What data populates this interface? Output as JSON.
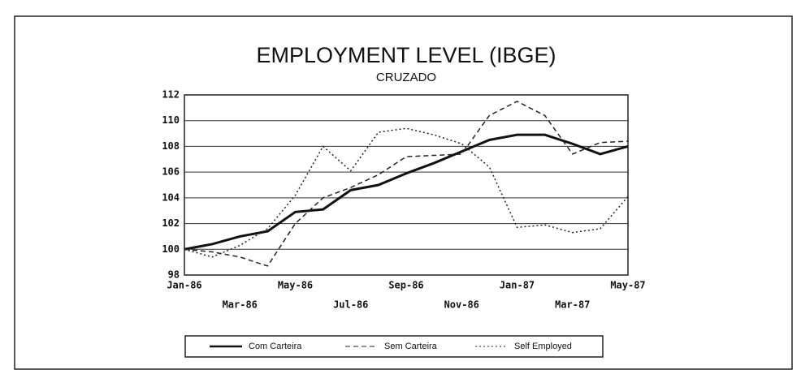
{
  "chart_data": {
    "type": "line",
    "title": "EMPLOYMENT LEVEL (IBGE)",
    "subtitle": "CRUZADO",
    "categories": [
      "Jan-86",
      null,
      "Mar-86",
      null,
      "May-86",
      null,
      "Jul-86",
      null,
      "Sep-86",
      null,
      "Nov-86",
      null,
      "Jan-87",
      null,
      "Mar-87",
      null,
      "May-87"
    ],
    "series": [
      {
        "name": "Com Carteira",
        "color": "#111111",
        "line_style": "solid",
        "values": [
          100,
          100.4,
          101,
          101.4,
          102.9,
          103.1,
          104.6,
          105,
          105.9,
          106.7,
          107.6,
          108.5,
          108.9,
          108.9,
          108.2,
          107.4,
          108
        ]
      },
      {
        "name": "Sem Carteira",
        "color": "#222222",
        "line_style": "dashed",
        "values": [
          100,
          99.8,
          99.4,
          98.7,
          102,
          104,
          104.8,
          105.8,
          107.2,
          107.3,
          107.4,
          110.4,
          111.5,
          110.4,
          107.4,
          108.3,
          108.4
        ]
      },
      {
        "name": "Self Employed",
        "color": "#222222",
        "line_style": "dotted",
        "values": [
          100,
          99.4,
          100.3,
          101.6,
          104.2,
          108,
          106.1,
          109.1,
          109.4,
          108.9,
          108.2,
          106.4,
          101.7,
          101.9,
          101.3,
          101.6,
          104.1
        ]
      }
    ],
    "ylim": [
      98,
      112
    ],
    "yticks": [
      98,
      100,
      102,
      104,
      106,
      108,
      110,
      112
    ],
    "grid": true
  }
}
